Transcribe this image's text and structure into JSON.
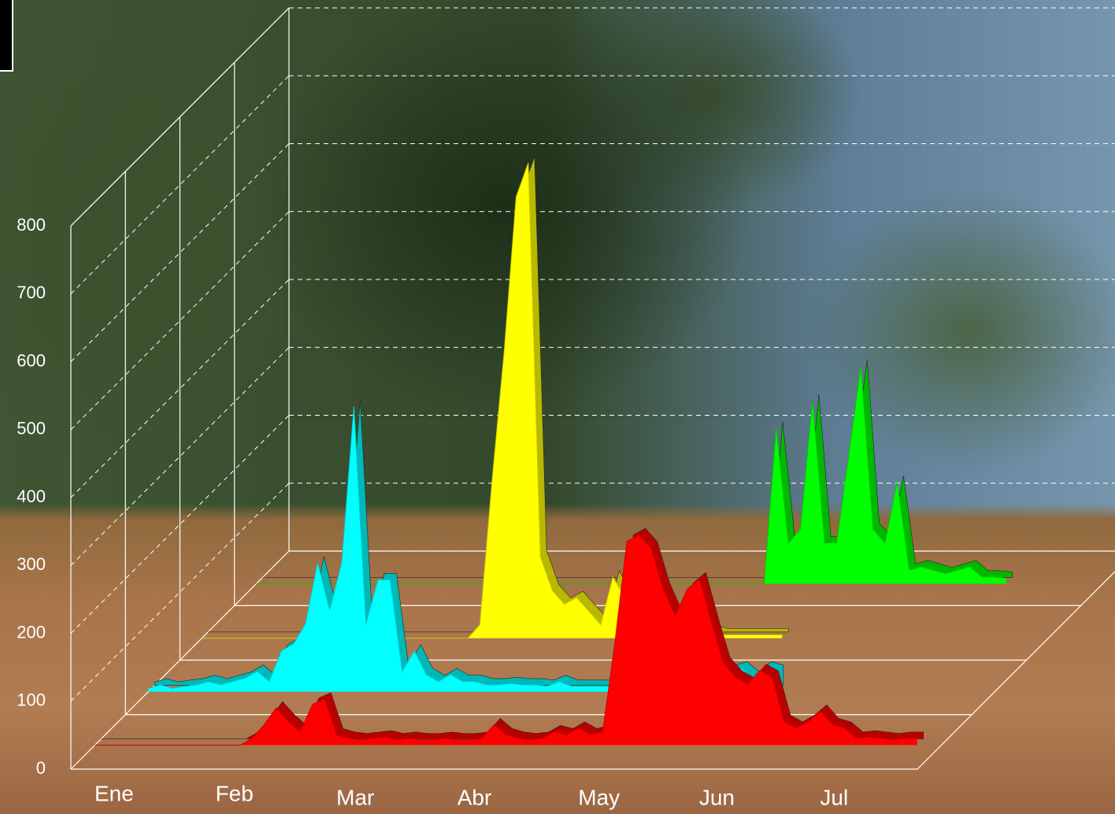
{
  "chart_data": {
    "type": "area3d",
    "categories": [
      "Ene",
      null,
      null,
      null,
      null,
      null,
      null,
      null,
      null,
      null,
      "Feb",
      null,
      null,
      null,
      null,
      null,
      null,
      null,
      null,
      null,
      "Mar",
      null,
      null,
      null,
      null,
      null,
      null,
      null,
      null,
      null,
      "Abr",
      null,
      null,
      null,
      null,
      null,
      null,
      null,
      null,
      null,
      "May",
      null,
      null,
      null,
      null,
      null,
      null,
      null,
      null,
      null,
      "Jun",
      null,
      null,
      null,
      null,
      null,
      null,
      null,
      null,
      null,
      "Jul",
      null,
      null,
      null,
      null,
      null,
      null,
      null,
      null,
      null
    ],
    "series": [
      {
        "color": "#ff0000",
        "values": [
          0,
          0,
          0,
          0,
          0,
          0,
          0,
          0,
          0,
          0,
          0,
          0,
          0,
          10,
          30,
          55,
          35,
          20,
          60,
          68,
          15,
          10,
          8,
          10,
          12,
          8,
          10,
          8,
          8,
          10,
          8,
          8,
          10,
          30,
          15,
          10,
          8,
          10,
          20,
          15,
          25,
          15,
          20,
          150,
          300,
          310,
          290,
          230,
          190,
          230,
          245,
          180,
          120,
          100,
          90,
          110,
          100,
          35,
          25,
          35,
          50,
          30,
          25,
          10,
          12,
          10,
          8,
          10,
          10,
          null
        ]
      },
      {
        "color": "#00ffff",
        "values": [
          5,
          10,
          5,
          8,
          10,
          15,
          10,
          15,
          20,
          30,
          15,
          60,
          70,
          100,
          190,
          120,
          190,
          420,
          100,
          165,
          165,
          30,
          60,
          25,
          15,
          25,
          15,
          15,
          10,
          10,
          12,
          10,
          10,
          8,
          15,
          8,
          8,
          8,
          8,
          10,
          10,
          10,
          10,
          10,
          10,
          10,
          10,
          10,
          30,
          35,
          20,
          35,
          30,
          null,
          null,
          null,
          null,
          null,
          null,
          null,
          null,
          null,
          null,
          null,
          null,
          null,
          null,
          null,
          null,
          null
        ]
      },
      {
        "color": "#ffff00",
        "values": [
          0,
          0,
          0,
          0,
          0,
          0,
          0,
          0,
          0,
          0,
          0,
          0,
          0,
          0,
          0,
          0,
          0,
          0,
          0,
          0,
          0,
          0,
          0,
          20,
          230,
          420,
          650,
          700,
          120,
          70,
          50,
          60,
          40,
          20,
          90,
          60,
          40,
          40,
          30,
          20,
          10,
          20,
          10,
          5,
          5,
          5,
          5,
          5,
          5,
          null,
          null,
          null,
          null,
          null,
          null,
          null,
          null,
          null,
          null,
          null,
          null,
          null,
          null,
          null,
          null,
          null,
          null,
          null,
          null,
          null
        ]
      },
      {
        "color": "#00ff00",
        "values": [
          0,
          0,
          0,
          0,
          0,
          0,
          0,
          0,
          0,
          0,
          0,
          0,
          0,
          0,
          0,
          0,
          0,
          0,
          0,
          0,
          0,
          0,
          0,
          0,
          0,
          0,
          0,
          0,
          0,
          0,
          0,
          0,
          0,
          0,
          0,
          0,
          0,
          0,
          0,
          0,
          0,
          0,
          0,
          230,
          60,
          80,
          270,
          60,
          60,
          190,
          320,
          80,
          60,
          150,
          20,
          25,
          20,
          15,
          20,
          25,
          10,
          10,
          8,
          null,
          null,
          null,
          null,
          null,
          null,
          null
        ]
      }
    ],
    "ylim": [
      0,
      800
    ],
    "yticks": [
      0,
      100,
      200,
      300,
      400,
      500,
      600,
      700,
      800
    ],
    "grid": true
  }
}
